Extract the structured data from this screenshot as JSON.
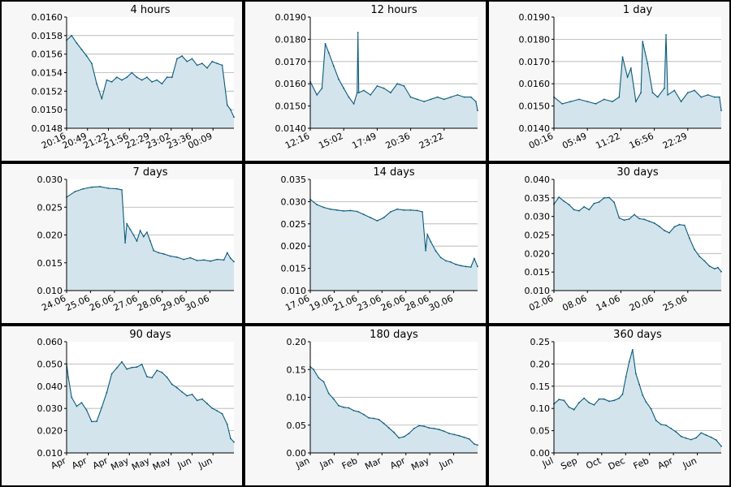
{
  "chart_data": [
    {
      "type": "area",
      "title": "4 hours",
      "ylim": [
        0.0148,
        0.016
      ],
      "yticks": [
        "0.0160",
        "0.0158",
        "0.0156",
        "0.0154",
        "0.0152",
        "0.0150",
        "0.0148"
      ],
      "xticks": [
        "20:16",
        "20:49",
        "21:22",
        "21:56",
        "22:29",
        "23:02",
        "23:36",
        "00:09"
      ],
      "grid": true,
      "series": [
        {
          "x": [
            0,
            0.03,
            0.06,
            0.09,
            0.12,
            0.15,
            0.18,
            0.21,
            0.24,
            0.27,
            0.3,
            0.33,
            0.36,
            0.39,
            0.42,
            0.45,
            0.48,
            0.51,
            0.54,
            0.57,
            0.6,
            0.63,
            0.66,
            0.69,
            0.72,
            0.75,
            0.78,
            0.81,
            0.84,
            0.87,
            0.9,
            0.93,
            0.96,
            0.98,
            1.0
          ],
          "y": [
            0.01575,
            0.0158,
            0.01572,
            0.01565,
            0.01558,
            0.0155,
            0.01528,
            0.01512,
            0.01532,
            0.0153,
            0.01535,
            0.01532,
            0.01535,
            0.0154,
            0.01535,
            0.01532,
            0.01535,
            0.0153,
            0.01532,
            0.01528,
            0.01535,
            0.01535,
            0.01555,
            0.01558,
            0.01552,
            0.01555,
            0.01548,
            0.0155,
            0.01545,
            0.01552,
            0.0155,
            0.01548,
            0.01505,
            0.015,
            0.01492
          ]
        }
      ]
    },
    {
      "type": "area",
      "title": "12 hours",
      "ylim": [
        0.014,
        0.019
      ],
      "yticks": [
        "0.0190",
        "0.0180",
        "0.0170",
        "0.0160",
        "0.0150",
        "0.0140"
      ],
      "xticks": [
        "12:16",
        "15:02",
        "17:49",
        "20:36",
        "23:22"
      ],
      "grid": true,
      "series": [
        {
          "x": [
            0,
            0.04,
            0.07,
            0.09,
            0.11,
            0.14,
            0.17,
            0.2,
            0.23,
            0.26,
            0.28,
            0.285,
            0.29,
            0.32,
            0.36,
            0.4,
            0.44,
            0.48,
            0.52,
            0.56,
            0.6,
            0.64,
            0.68,
            0.72,
            0.76,
            0.8,
            0.84,
            0.88,
            0.92,
            0.96,
            0.99,
            1.0
          ],
          "y": [
            0.0161,
            0.0155,
            0.0158,
            0.0178,
            0.0174,
            0.0168,
            0.0162,
            0.0158,
            0.0154,
            0.0151,
            0.0156,
            0.0183,
            0.0156,
            0.0157,
            0.0155,
            0.0159,
            0.0158,
            0.0156,
            0.016,
            0.0159,
            0.0154,
            0.0153,
            0.0152,
            0.0153,
            0.0154,
            0.0153,
            0.0154,
            0.0155,
            0.0154,
            0.0154,
            0.0152,
            0.0148
          ]
        }
      ]
    },
    {
      "type": "area",
      "title": "1 day",
      "ylim": [
        0.014,
        0.019
      ],
      "yticks": [
        "0.0190",
        "0.0180",
        "0.0170",
        "0.0160",
        "0.0150",
        "0.0140"
      ],
      "xticks": [
        "00:16",
        "05:49",
        "11:22",
        "16:56",
        "22:29"
      ],
      "grid": true,
      "series": [
        {
          "x": [
            0,
            0.05,
            0.1,
            0.15,
            0.2,
            0.25,
            0.3,
            0.35,
            0.39,
            0.41,
            0.44,
            0.46,
            0.49,
            0.52,
            0.53,
            0.56,
            0.59,
            0.62,
            0.66,
            0.67,
            0.68,
            0.72,
            0.76,
            0.8,
            0.84,
            0.88,
            0.92,
            0.96,
            0.99,
            1.0
          ],
          "y": [
            0.0154,
            0.0151,
            0.0152,
            0.0153,
            0.0152,
            0.0151,
            0.0153,
            0.0152,
            0.0154,
            0.0172,
            0.0163,
            0.0167,
            0.0152,
            0.0156,
            0.0179,
            0.0169,
            0.0156,
            0.0154,
            0.0158,
            0.0182,
            0.0155,
            0.0157,
            0.0152,
            0.0156,
            0.0157,
            0.0154,
            0.0155,
            0.0154,
            0.0154,
            0.0148
          ]
        }
      ]
    },
    {
      "type": "area",
      "title": "7 days",
      "ylim": [
        0.01,
        0.03
      ],
      "yticks": [
        "0.030",
        "0.025",
        "0.020",
        "0.015",
        "0.010"
      ],
      "xticks": [
        "24.06",
        "25.06",
        "26.06",
        "27.06",
        "28.06",
        "29.06",
        "30.06"
      ],
      "grid": true,
      "series": [
        {
          "x": [
            0,
            0.05,
            0.1,
            0.15,
            0.2,
            0.25,
            0.3,
            0.33,
            0.35,
            0.36,
            0.38,
            0.4,
            0.42,
            0.44,
            0.46,
            0.48,
            0.5,
            0.52,
            0.55,
            0.58,
            0.62,
            0.66,
            0.7,
            0.74,
            0.78,
            0.82,
            0.86,
            0.9,
            0.94,
            0.96,
            0.98,
            1.0
          ],
          "y": [
            0.0268,
            0.0278,
            0.0283,
            0.0286,
            0.0287,
            0.0284,
            0.0283,
            0.0281,
            0.0186,
            0.022,
            0.021,
            0.02,
            0.0189,
            0.0208,
            0.0197,
            0.0205,
            0.0189,
            0.0172,
            0.0168,
            0.0166,
            0.0162,
            0.016,
            0.0156,
            0.0159,
            0.0154,
            0.0155,
            0.0153,
            0.0156,
            0.0155,
            0.0168,
            0.0158,
            0.0152
          ]
        }
      ]
    },
    {
      "type": "area",
      "title": "14 days",
      "ylim": [
        0.01,
        0.035
      ],
      "yticks": [
        "0.035",
        "0.030",
        "0.025",
        "0.020",
        "0.015",
        "0.010"
      ],
      "xticks": [
        "17.06",
        "19.06",
        "21.06",
        "23.06",
        "26.06",
        "28.06",
        "30.06"
      ],
      "grid": true,
      "series": [
        {
          "x": [
            0,
            0.04,
            0.08,
            0.12,
            0.16,
            0.2,
            0.24,
            0.28,
            0.32,
            0.36,
            0.4,
            0.44,
            0.48,
            0.52,
            0.56,
            0.6,
            0.64,
            0.67,
            0.69,
            0.7,
            0.72,
            0.75,
            0.78,
            0.81,
            0.84,
            0.87,
            0.9,
            0.93,
            0.96,
            0.98,
            1.0
          ],
          "y": [
            0.0305,
            0.0293,
            0.0287,
            0.0283,
            0.0281,
            0.0279,
            0.028,
            0.0278,
            0.0271,
            0.0264,
            0.0257,
            0.0264,
            0.0277,
            0.0283,
            0.0281,
            0.0281,
            0.028,
            0.0277,
            0.019,
            0.0226,
            0.021,
            0.0189,
            0.0174,
            0.0167,
            0.0164,
            0.0159,
            0.0156,
            0.0154,
            0.0153,
            0.0172,
            0.0154
          ]
        }
      ]
    },
    {
      "type": "area",
      "title": "30 days",
      "ylim": [
        0.01,
        0.04
      ],
      "yticks": [
        "0.040",
        "0.035",
        "0.030",
        "0.025",
        "0.020",
        "0.015",
        "0.010"
      ],
      "xticks": [
        "02.06",
        "08.06",
        "14.06",
        "20.06",
        "25.06"
      ],
      "grid": true,
      "series": [
        {
          "x": [
            0,
            0.03,
            0.06,
            0.09,
            0.12,
            0.15,
            0.18,
            0.21,
            0.24,
            0.27,
            0.3,
            0.33,
            0.36,
            0.39,
            0.42,
            0.45,
            0.48,
            0.51,
            0.54,
            0.57,
            0.6,
            0.63,
            0.66,
            0.69,
            0.72,
            0.75,
            0.78,
            0.81,
            0.84,
            0.87,
            0.9,
            0.93,
            0.96,
            0.98,
            1.0
          ],
          "y": [
            0.0333,
            0.0352,
            0.0341,
            0.0332,
            0.0318,
            0.0315,
            0.0326,
            0.0318,
            0.0335,
            0.0339,
            0.035,
            0.0351,
            0.0338,
            0.0296,
            0.029,
            0.0293,
            0.0305,
            0.0294,
            0.0292,
            0.0287,
            0.0282,
            0.0273,
            0.0262,
            0.0256,
            0.0272,
            0.0278,
            0.0276,
            0.0241,
            0.0211,
            0.0192,
            0.018,
            0.0166,
            0.0159,
            0.0162,
            0.0151
          ]
        }
      ]
    },
    {
      "type": "area",
      "title": "90 days",
      "ylim": [
        0.01,
        0.06
      ],
      "yticks": [
        "0.060",
        "0.050",
        "0.040",
        "0.030",
        "0.020",
        "0.010"
      ],
      "xticks": [
        "Apr",
        "Apr",
        "Apr",
        "May",
        "May",
        "May",
        "Jun",
        "Jun"
      ],
      "grid": true,
      "series": [
        {
          "x": [
            0,
            0.01,
            0.03,
            0.06,
            0.09,
            0.12,
            0.15,
            0.18,
            0.21,
            0.24,
            0.27,
            0.3,
            0.33,
            0.36,
            0.39,
            0.42,
            0.45,
            0.48,
            0.51,
            0.54,
            0.57,
            0.6,
            0.63,
            0.66,
            0.69,
            0.72,
            0.75,
            0.78,
            0.81,
            0.84,
            0.87,
            0.9,
            0.93,
            0.96,
            0.98,
            1.0
          ],
          "y": [
            0.0501,
            0.044,
            0.035,
            0.031,
            0.0326,
            0.0292,
            0.0241,
            0.0242,
            0.0305,
            0.0371,
            0.0456,
            0.0482,
            0.0509,
            0.0477,
            0.0484,
            0.0486,
            0.0498,
            0.0443,
            0.0438,
            0.0471,
            0.0462,
            0.044,
            0.0408,
            0.0393,
            0.0374,
            0.0357,
            0.0363,
            0.0336,
            0.0342,
            0.0322,
            0.0301,
            0.0289,
            0.0276,
            0.0228,
            0.0165,
            0.0149
          ]
        }
      ]
    },
    {
      "type": "area",
      "title": "180 days",
      "ylim": [
        0,
        0.2
      ],
      "yticks": [
        "0.20",
        "0.15",
        "0.10",
        "0.05",
        "0.00"
      ],
      "xticks": [
        "Jan",
        "Jan",
        "Feb",
        "Mar",
        "Apr",
        "May",
        "Jun"
      ],
      "grid": true,
      "series": [
        {
          "x": [
            0,
            0.02,
            0.05,
            0.08,
            0.11,
            0.14,
            0.17,
            0.2,
            0.23,
            0.26,
            0.29,
            0.32,
            0.35,
            0.38,
            0.41,
            0.44,
            0.47,
            0.5,
            0.53,
            0.56,
            0.59,
            0.62,
            0.65,
            0.68,
            0.71,
            0.74,
            0.77,
            0.8,
            0.83,
            0.86,
            0.89,
            0.92,
            0.95,
            0.98,
            1.0
          ],
          "y": [
            0.155,
            0.15,
            0.135,
            0.128,
            0.107,
            0.097,
            0.085,
            0.082,
            0.081,
            0.076,
            0.074,
            0.069,
            0.063,
            0.062,
            0.06,
            0.053,
            0.045,
            0.037,
            0.027,
            0.029,
            0.035,
            0.044,
            0.049,
            0.048,
            0.045,
            0.044,
            0.042,
            0.039,
            0.035,
            0.033,
            0.031,
            0.028,
            0.025,
            0.016,
            0.014
          ]
        }
      ]
    },
    {
      "type": "area",
      "title": "360 days",
      "ylim": [
        0,
        0.25
      ],
      "yticks": [
        "0.25",
        "0.20",
        "0.15",
        "0.10",
        "0.05",
        "0.00"
      ],
      "xticks": [
        "Jul",
        "Sep",
        "Oct",
        "Dec",
        "Feb",
        "Apr",
        "Jun"
      ],
      "grid": true,
      "series": [
        {
          "x": [
            0,
            0.03,
            0.06,
            0.09,
            0.12,
            0.15,
            0.18,
            0.21,
            0.24,
            0.27,
            0.3,
            0.33,
            0.36,
            0.39,
            0.41,
            0.43,
            0.45,
            0.47,
            0.49,
            0.51,
            0.53,
            0.55,
            0.58,
            0.61,
            0.64,
            0.67,
            0.7,
            0.73,
            0.76,
            0.79,
            0.82,
            0.85,
            0.88,
            0.91,
            0.94,
            0.97,
            1.0
          ],
          "y": [
            0.11,
            0.12,
            0.118,
            0.103,
            0.097,
            0.113,
            0.123,
            0.113,
            0.108,
            0.121,
            0.121,
            0.116,
            0.118,
            0.123,
            0.132,
            0.171,
            0.205,
            0.232,
            0.178,
            0.154,
            0.13,
            0.115,
            0.099,
            0.073,
            0.064,
            0.062,
            0.055,
            0.047,
            0.037,
            0.033,
            0.03,
            0.034,
            0.045,
            0.04,
            0.035,
            0.029,
            0.015
          ]
        }
      ]
    }
  ]
}
